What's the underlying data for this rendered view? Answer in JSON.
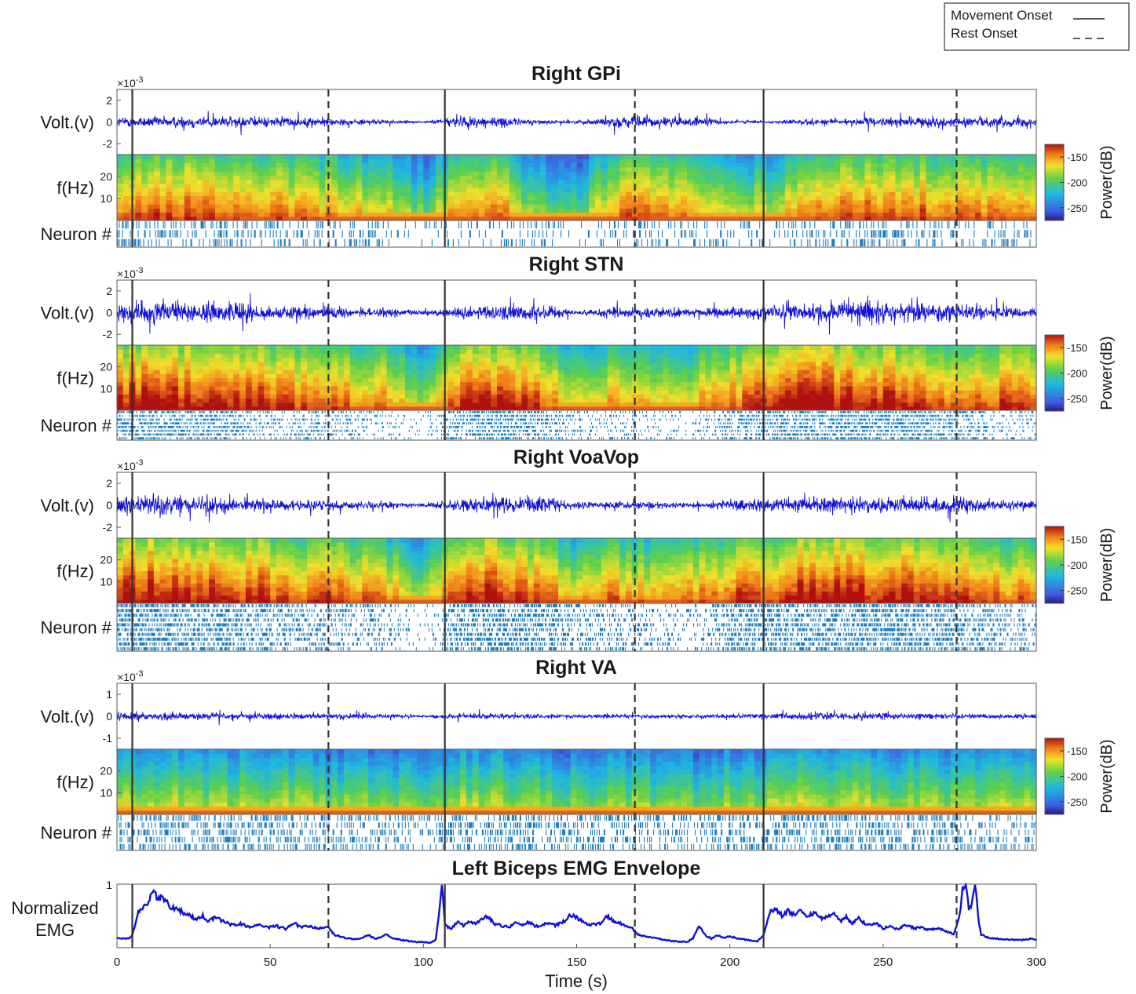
{
  "legend": {
    "entries": [
      {
        "label": "Movement Onset",
        "style": "solid"
      },
      {
        "label": "Rest Onset",
        "style": "dashed"
      }
    ],
    "placement": "top-right"
  },
  "chart_data": {
    "type": "multi-panel time series with spectrograms and raster plots",
    "x": {
      "label": "Time (s)",
      "range": [
        0,
        300
      ],
      "ticks": [
        0,
        50,
        100,
        150,
        200,
        250,
        300
      ]
    },
    "movement_onsets_s": [
      5,
      107,
      211
    ],
    "rest_onsets_s": [
      69,
      169,
      274
    ],
    "voltage_exponent": "×10",
    "voltage_exponent_power": "-3",
    "panels": [
      {
        "title": "Right GPi",
        "volt_label": "Volt.(v)",
        "volt_ticks": [
          2,
          0,
          -2
        ],
        "volt_range": [
          -3,
          3
        ],
        "freq_label": "f(Hz)",
        "freq_ticks": [
          20,
          10
        ],
        "neuron_label": "Neuron #",
        "colorbar": {
          "label": "Power(dB)",
          "ticks": [
            -150,
            -200,
            -250
          ]
        },
        "volt_amplitude_profile": [
          0.45,
          0.5,
          0.55,
          0.5,
          0.45,
          0.4,
          0.3,
          0.2,
          0.05,
          0.55,
          0.45,
          0.2,
          0.12,
          0.5,
          0.5,
          0.45,
          0.2,
          0.08,
          0.3,
          0.3,
          0.4,
          0.45,
          0.4,
          0.45,
          0.35
        ],
        "spectrogram_level_profile": [
          0.6,
          0.62,
          0.65,
          0.6,
          0.58,
          0.55,
          0.5,
          0.45,
          0.25,
          0.6,
          0.58,
          0.3,
          0.25,
          0.58,
          0.6,
          0.58,
          0.45,
          0.4,
          0.58,
          0.62,
          0.6,
          0.6,
          0.58,
          0.6,
          0.58
        ],
        "neuron_rows": 3,
        "neuron_density_profile": [
          0.5,
          0.4,
          0.4,
          0.5,
          0.3,
          0.35,
          0.4,
          0.3,
          0.05,
          0.3,
          0.3,
          0.3,
          0.1,
          0.4,
          0.45,
          0.3,
          0.4,
          0.2,
          0.45,
          0.4,
          0.5,
          0.4,
          0.3,
          0.4,
          0.35
        ]
      },
      {
        "title": "Right STN",
        "volt_label": "Volt.(v)",
        "volt_ticks": [
          2,
          0,
          -2
        ],
        "volt_range": [
          -3,
          3
        ],
        "freq_label": "f(Hz)",
        "freq_ticks": [
          20,
          10
        ],
        "neuron_label": "Neuron #",
        "colorbar": {
          "label": "Power(dB)",
          "ticks": [
            -150,
            -200,
            -250
          ]
        },
        "volt_amplitude_profile": [
          0.9,
          0.95,
          0.85,
          0.9,
          0.6,
          0.55,
          0.45,
          0.4,
          0.2,
          0.55,
          0.7,
          0.75,
          0.2,
          0.55,
          0.5,
          0.3,
          0.5,
          0.6,
          0.95,
          0.9,
          0.95,
          0.8,
          0.9,
          0.5,
          0.35
        ],
        "spectrogram_level_profile": [
          0.72,
          0.75,
          0.72,
          0.7,
          0.68,
          0.62,
          0.6,
          0.55,
          0.4,
          0.68,
          0.7,
          0.66,
          0.42,
          0.55,
          0.5,
          0.5,
          0.62,
          0.65,
          0.75,
          0.74,
          0.72,
          0.7,
          0.62,
          0.64,
          0.6
        ],
        "neuron_rows": 8,
        "neuron_density_profile": [
          0.9,
          0.95,
          0.95,
          0.85,
          0.5,
          0.55,
          0.5,
          0.3,
          0.05,
          0.9,
          0.95,
          0.9,
          0.4,
          0.3,
          0.3,
          0.15,
          0.7,
          0.8,
          0.9,
          0.9,
          0.95,
          0.9,
          0.85,
          0.4,
          0.3
        ]
      },
      {
        "title": "Right VoaVop",
        "volt_label": "Volt.(v)",
        "volt_ticks": [
          2,
          0,
          -2
        ],
        "volt_range": [
          -3,
          3
        ],
        "freq_label": "f(Hz)",
        "freq_ticks": [
          20,
          10
        ],
        "neuron_label": "Neuron #",
        "colorbar": {
          "label": "Power(dB)",
          "ticks": [
            -150,
            -200,
            -250
          ]
        },
        "volt_amplitude_profile": [
          0.8,
          0.85,
          0.75,
          0.7,
          0.5,
          0.45,
          0.4,
          0.35,
          0.15,
          0.6,
          0.7,
          0.65,
          0.3,
          0.35,
          0.3,
          0.25,
          0.5,
          0.55,
          0.7,
          0.75,
          0.7,
          0.65,
          0.6,
          0.45,
          0.4
        ],
        "spectrogram_level_profile": [
          0.72,
          0.74,
          0.72,
          0.7,
          0.66,
          0.62,
          0.6,
          0.55,
          0.38,
          0.7,
          0.7,
          0.65,
          0.45,
          0.6,
          0.5,
          0.55,
          0.62,
          0.64,
          0.74,
          0.72,
          0.72,
          0.7,
          0.62,
          0.6,
          0.55
        ],
        "neuron_rows": 10,
        "neuron_density_profile": [
          0.95,
          0.95,
          0.9,
          0.9,
          0.6,
          0.6,
          0.55,
          0.4,
          0.05,
          0.9,
          0.9,
          0.9,
          0.5,
          0.5,
          0.4,
          0.2,
          0.8,
          0.85,
          0.9,
          0.9,
          0.95,
          0.9,
          0.85,
          0.5,
          0.45
        ]
      },
      {
        "title": "Right VA",
        "volt_label": "Volt.(v)",
        "volt_ticks": [
          1,
          0,
          -1
        ],
        "volt_range": [
          -1.5,
          1.5
        ],
        "freq_label": "f(Hz)",
        "freq_ticks": [
          20,
          10
        ],
        "neuron_label": "Neuron #",
        "colorbar": {
          "label": "Power(dB)",
          "ticks": [
            -150,
            -200,
            -250
          ]
        },
        "volt_amplitude_profile": [
          0.4,
          0.35,
          0.3,
          0.28,
          0.25,
          0.25,
          0.22,
          0.2,
          0.15,
          0.25,
          0.25,
          0.22,
          0.15,
          0.18,
          0.15,
          0.15,
          0.2,
          0.22,
          0.35,
          0.3,
          0.3,
          0.28,
          0.22,
          0.2,
          0.2
        ],
        "spectrogram_level_profile": [
          0.42,
          0.4,
          0.4,
          0.38,
          0.36,
          0.34,
          0.34,
          0.3,
          0.3,
          0.4,
          0.38,
          0.36,
          0.3,
          0.32,
          0.32,
          0.28,
          0.34,
          0.36,
          0.42,
          0.4,
          0.38,
          0.38,
          0.34,
          0.36,
          0.34
        ],
        "neuron_rows": 5,
        "neuron_density_profile": [
          0.6,
          0.55,
          0.6,
          0.6,
          0.55,
          0.55,
          0.5,
          0.5,
          0.45,
          0.55,
          0.55,
          0.5,
          0.45,
          0.5,
          0.45,
          0.4,
          0.5,
          0.55,
          0.6,
          0.6,
          0.55,
          0.55,
          0.5,
          0.5,
          0.5
        ]
      }
    ],
    "emg": {
      "title": "Left Biceps EMG Envelope",
      "ylabel_line1": "Normalized",
      "ylabel_line2": "EMG",
      "y_ticks": [
        1
      ],
      "ylim": [
        0,
        1
      ],
      "points": [
        [
          0,
          0.15
        ],
        [
          4,
          0.14
        ],
        [
          5,
          0.2
        ],
        [
          7,
          0.55
        ],
        [
          10,
          0.7
        ],
        [
          12,
          0.95
        ],
        [
          13,
          0.75
        ],
        [
          15,
          0.8
        ],
        [
          17,
          0.65
        ],
        [
          20,
          0.6
        ],
        [
          23,
          0.52
        ],
        [
          26,
          0.45
        ],
        [
          28,
          0.5
        ],
        [
          30,
          0.42
        ],
        [
          32,
          0.48
        ],
        [
          35,
          0.4
        ],
        [
          38,
          0.36
        ],
        [
          40,
          0.38
        ],
        [
          43,
          0.33
        ],
        [
          46,
          0.36
        ],
        [
          49,
          0.32
        ],
        [
          52,
          0.34
        ],
        [
          55,
          0.3
        ],
        [
          58,
          0.38
        ],
        [
          60,
          0.32
        ],
        [
          63,
          0.34
        ],
        [
          66,
          0.3
        ],
        [
          69,
          0.32
        ],
        [
          71,
          0.2
        ],
        [
          75,
          0.15
        ],
        [
          78,
          0.13
        ],
        [
          80,
          0.16
        ],
        [
          82,
          0.2
        ],
        [
          84,
          0.14
        ],
        [
          86,
          0.16
        ],
        [
          88,
          0.22
        ],
        [
          90,
          0.15
        ],
        [
          93,
          0.12
        ],
        [
          96,
          0.1
        ],
        [
          99,
          0.09
        ],
        [
          102,
          0.08
        ],
        [
          104,
          0.12
        ],
        [
          105,
          0.5
        ],
        [
          106,
          1.0
        ],
        [
          107,
          0.35
        ],
        [
          109,
          0.3
        ],
        [
          111,
          0.4
        ],
        [
          113,
          0.35
        ],
        [
          115,
          0.42
        ],
        [
          117,
          0.38
        ],
        [
          119,
          0.45
        ],
        [
          121,
          0.5
        ],
        [
          123,
          0.38
        ],
        [
          125,
          0.35
        ],
        [
          128,
          0.32
        ],
        [
          130,
          0.42
        ],
        [
          132,
          0.36
        ],
        [
          134,
          0.4
        ],
        [
          137,
          0.34
        ],
        [
          140,
          0.38
        ],
        [
          143,
          0.35
        ],
        [
          146,
          0.42
        ],
        [
          148,
          0.52
        ],
        [
          150,
          0.48
        ],
        [
          152,
          0.4
        ],
        [
          155,
          0.36
        ],
        [
          158,
          0.38
        ],
        [
          160,
          0.5
        ],
        [
          162,
          0.42
        ],
        [
          165,
          0.36
        ],
        [
          168,
          0.32
        ],
        [
          170,
          0.2
        ],
        [
          173,
          0.17
        ],
        [
          176,
          0.15
        ],
        [
          179,
          0.12
        ],
        [
          182,
          0.1
        ],
        [
          186,
          0.09
        ],
        [
          188,
          0.15
        ],
        [
          190,
          0.35
        ],
        [
          192,
          0.2
        ],
        [
          194,
          0.14
        ],
        [
          196,
          0.2
        ],
        [
          198,
          0.15
        ],
        [
          200,
          0.18
        ],
        [
          203,
          0.14
        ],
        [
          206,
          0.12
        ],
        [
          209,
          0.1
        ],
        [
          211,
          0.2
        ],
        [
          213,
          0.55
        ],
        [
          215,
          0.62
        ],
        [
          217,
          0.5
        ],
        [
          219,
          0.58
        ],
        [
          221,
          0.52
        ],
        [
          223,
          0.6
        ],
        [
          225,
          0.5
        ],
        [
          228,
          0.55
        ],
        [
          230,
          0.45
        ],
        [
          232,
          0.5
        ],
        [
          234,
          0.55
        ],
        [
          236,
          0.42
        ],
        [
          238,
          0.48
        ],
        [
          240,
          0.38
        ],
        [
          242,
          0.46
        ],
        [
          245,
          0.36
        ],
        [
          248,
          0.38
        ],
        [
          250,
          0.3
        ],
        [
          252,
          0.34
        ],
        [
          255,
          0.28
        ],
        [
          257,
          0.38
        ],
        [
          260,
          0.3
        ],
        [
          262,
          0.32
        ],
        [
          265,
          0.28
        ],
        [
          268,
          0.3
        ],
        [
          270,
          0.26
        ],
        [
          272,
          0.24
        ],
        [
          273,
          0.2
        ],
        [
          275,
          0.5
        ],
        [
          276,
          0.95
        ],
        [
          277,
          1.0
        ],
        [
          278,
          0.6
        ],
        [
          279,
          0.7
        ],
        [
          280,
          1.0
        ],
        [
          281,
          0.5
        ],
        [
          282,
          0.2
        ],
        [
          285,
          0.15
        ],
        [
          290,
          0.13
        ],
        [
          295,
          0.12
        ],
        [
          298,
          0.14
        ],
        [
          300,
          0.12
        ]
      ]
    }
  }
}
